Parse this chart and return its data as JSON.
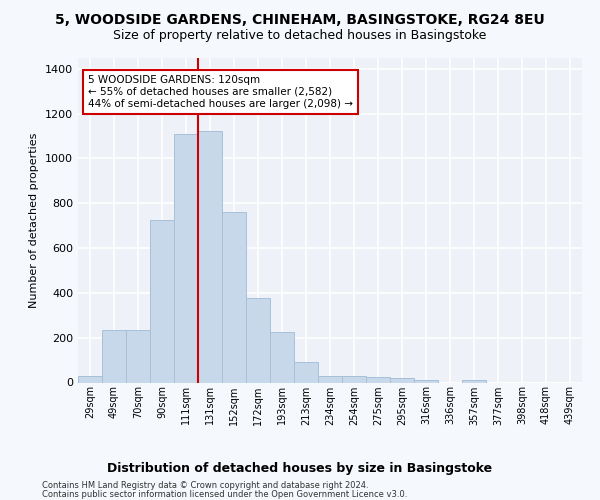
{
  "title_line1": "5, WOODSIDE GARDENS, CHINEHAM, BASINGSTOKE, RG24 8EU",
  "title_line2": "Size of property relative to detached houses in Basingstoke",
  "xlabel": "Distribution of detached houses by size in Basingstoke",
  "ylabel": "Number of detached properties",
  "footer_line1": "Contains HM Land Registry data © Crown copyright and database right 2024.",
  "footer_line2": "Contains public sector information licensed under the Open Government Licence v3.0.",
  "bar_labels": [
    "29sqm",
    "49sqm",
    "70sqm",
    "90sqm",
    "111sqm",
    "131sqm",
    "152sqm",
    "172sqm",
    "193sqm",
    "213sqm",
    "234sqm",
    "254sqm",
    "275sqm",
    "295sqm",
    "316sqm",
    "336sqm",
    "357sqm",
    "377sqm",
    "398sqm",
    "418sqm",
    "439sqm"
  ],
  "bar_values": [
    30,
    235,
    235,
    725,
    1110,
    1120,
    760,
    375,
    225,
    90,
    30,
    28,
    25,
    18,
    13,
    0,
    10,
    0,
    0,
    0,
    0
  ],
  "bar_color": "#c8d8eb",
  "bar_edge_color": "#a8c0d8",
  "red_line_color": "#cc0000",
  "annotation_text": "5 WOODSIDE GARDENS: 120sqm\n← 55% of detached houses are smaller (2,582)\n44% of semi-detached houses are larger (2,098) →",
  "annotation_box_facecolor": "#ffffff",
  "annotation_box_edgecolor": "#cc0000",
  "ylim": [
    0,
    1450
  ],
  "yticks": [
    0,
    200,
    400,
    600,
    800,
    1000,
    1200,
    1400
  ],
  "background_color": "#eef2f8",
  "grid_color": "#ffffff",
  "fig_facecolor": "#f5f8fc"
}
